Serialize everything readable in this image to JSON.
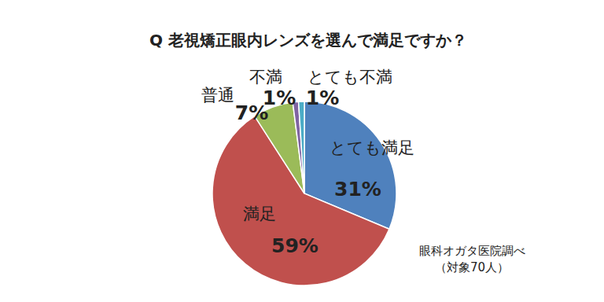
{
  "chart_data": {
    "type": "pie",
    "title": "Q  老視矯正眼内レンズを選んで満足ですか？",
    "categories": [
      "とても満足",
      "満足",
      "普通",
      "不満",
      "とても不満"
    ],
    "values": [
      31,
      59,
      7,
      1,
      1
    ],
    "value_labels": [
      "31%",
      "59%",
      "7%",
      "1%",
      "1%"
    ],
    "colors": [
      "#4f81bd",
      "#c0504d",
      "#9bbb59",
      "#8064a2",
      "#4bacc6"
    ],
    "data_labels": true,
    "annotations": [
      "眼科オガタ医院調べ",
      "（対象70人）"
    ]
  }
}
